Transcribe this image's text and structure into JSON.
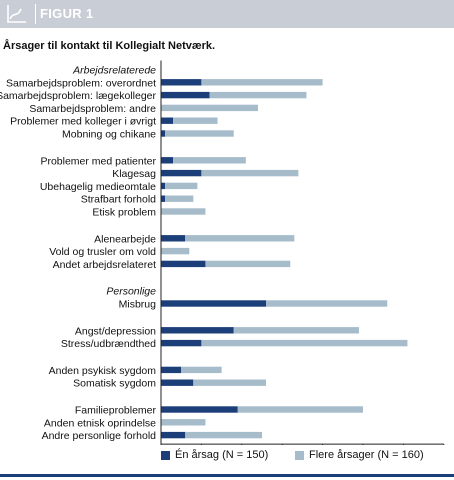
{
  "header": {
    "figure_label": "FIGUR 1",
    "icon": "line-chart-icon"
  },
  "colors": {
    "header_bg": "#c8cdd6",
    "series_one": "#1c3f7a",
    "series_multi": "#a6bccb",
    "rule": "#1c3f7a"
  },
  "chart_data": {
    "type": "bar",
    "orientation": "horizontal",
    "stacked": true,
    "title": "Årsager til kontakt til Kollegialt Netværk.",
    "xlabel": "",
    "x_unit": "n",
    "xlim": [
      0,
      70
    ],
    "xticks": [
      0,
      10,
      20,
      30,
      40,
      50,
      60,
      70
    ],
    "grid": false,
    "legend_position": "bottom",
    "series": [
      {
        "name": "Én årsag (N = 150)",
        "color": "#1c3f7a"
      },
      {
        "name": "Flere årsager (N = 160)",
        "color": "#a6bccb"
      }
    ],
    "groups": [
      {
        "heading": "Arbejdsrelaterede",
        "items": [
          {
            "label": "Samarbejdsproblem: overordnet",
            "values": [
              10,
              30
            ]
          },
          {
            "label": "Samarbejdsproblem: lægekolleger",
            "values": [
              12,
              24
            ]
          },
          {
            "label": "Samarbejdsproblem: andre",
            "values": [
              0,
              24
            ]
          },
          {
            "label": "Problemer med kolleger i øvrigt",
            "values": [
              3,
              11
            ]
          },
          {
            "label": "Mobning og chikane",
            "values": [
              1,
              17
            ]
          }
        ]
      },
      {
        "heading": "",
        "items": [
          {
            "label": "Problemer med patienter",
            "values": [
              3,
              18
            ]
          },
          {
            "label": "Klagesag",
            "values": [
              10,
              24
            ]
          },
          {
            "label": "Ubehagelig medieomtale",
            "values": [
              1,
              8
            ]
          },
          {
            "label": "Strafbart forhold",
            "values": [
              1,
              7
            ]
          },
          {
            "label": "Etisk problem",
            "values": [
              0,
              11
            ]
          }
        ]
      },
      {
        "heading": "",
        "items": [
          {
            "label": "Alenearbejde",
            "values": [
              6,
              27
            ]
          },
          {
            "label": "Vold og trusler om vold",
            "values": [
              0,
              7
            ]
          },
          {
            "label": "Andet arbejdsrelateret",
            "values": [
              11,
              21
            ]
          }
        ]
      },
      {
        "heading": "Personlige",
        "items": [
          {
            "label": "Misbrug",
            "values": [
              26,
              30
            ]
          }
        ]
      },
      {
        "heading": "",
        "items": [
          {
            "label": "Angst/depression",
            "values": [
              18,
              31
            ]
          },
          {
            "label": "Stress/udbrændthed",
            "values": [
              10,
              51
            ]
          }
        ]
      },
      {
        "heading": "",
        "items": [
          {
            "label": "Anden psykisk sygdom",
            "values": [
              5,
              10
            ]
          },
          {
            "label": "Somatisk sygdom",
            "values": [
              8,
              18
            ]
          }
        ]
      },
      {
        "heading": "",
        "items": [
          {
            "label": "Familieproblemer",
            "values": [
              19,
              31
            ]
          },
          {
            "label": "Anden etnisk oprindelse",
            "values": [
              0,
              11
            ]
          },
          {
            "label": "Andre personlige forhold",
            "values": [
              6,
              19
            ]
          }
        ]
      }
    ]
  }
}
